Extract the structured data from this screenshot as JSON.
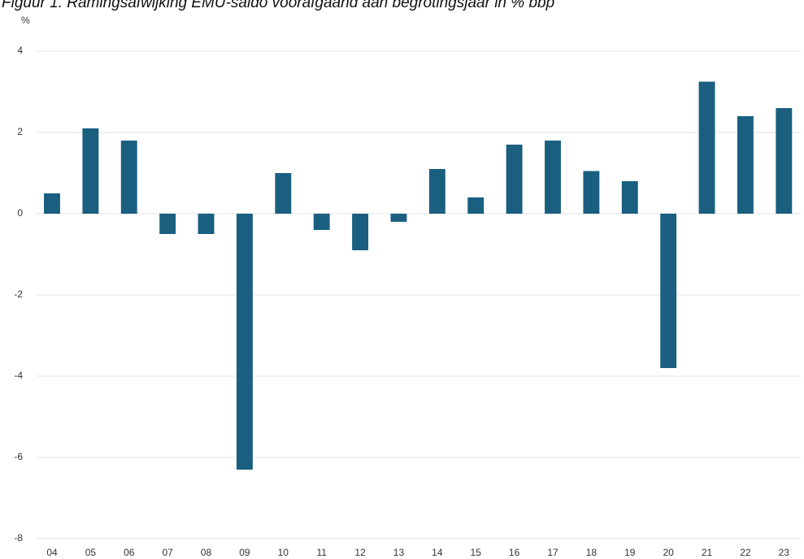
{
  "chart_data": {
    "type": "bar",
    "title": "Figuur 1. Ramingsafwijking EMU-saldo voorafgaand aan begrotingsjaar in % bbp",
    "y_label": "%",
    "categories": [
      "04",
      "05",
      "06",
      "07",
      "08",
      "09",
      "10",
      "11",
      "12",
      "13",
      "14",
      "15",
      "16",
      "17",
      "18",
      "19",
      "20",
      "21",
      "22",
      "23"
    ],
    "values": [
      0.5,
      2.1,
      1.8,
      -0.5,
      -0.5,
      -6.3,
      1.0,
      -0.4,
      -0.9,
      -0.2,
      1.1,
      0.4,
      1.7,
      1.8,
      1.05,
      0.8,
      -3.8,
      3.25,
      2.4,
      2.6
    ],
    "color": "#1a5f80",
    "ylim": [
      -8,
      4
    ],
    "yticks": [
      -8,
      -6,
      -4,
      -2,
      0,
      2,
      4
    ],
    "grid": true
  }
}
